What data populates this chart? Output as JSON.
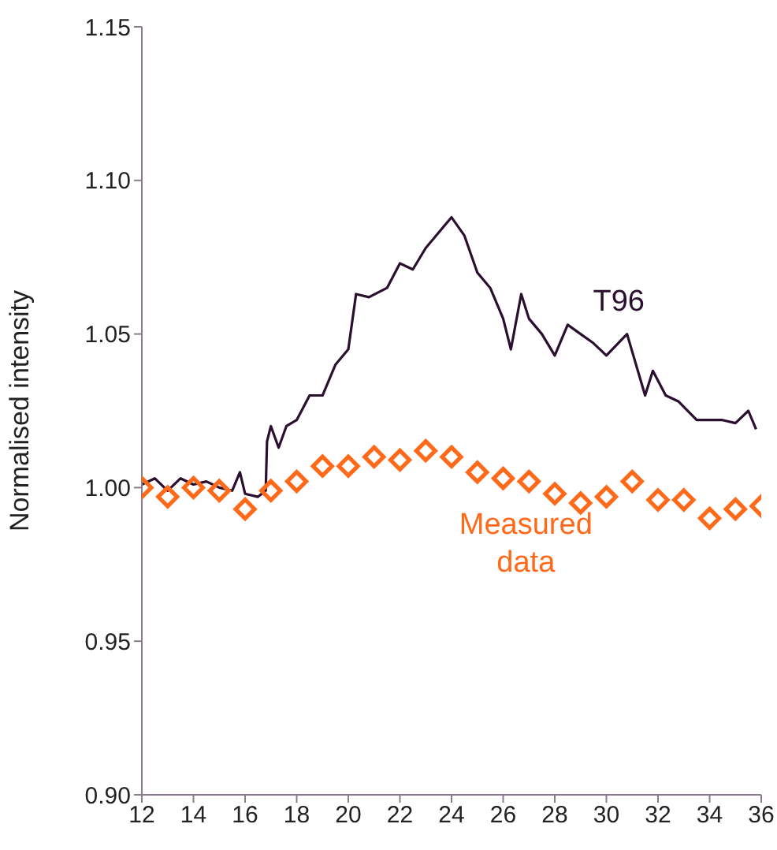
{
  "chart_data": {
    "type": "line",
    "ylabel": "Normalised intensity",
    "xlim": [
      12,
      36
    ],
    "xticks": [
      12,
      14,
      16,
      18,
      20,
      22,
      24,
      26,
      28,
      30,
      32,
      34,
      36
    ],
    "ylim": [
      0.9,
      1.15
    ],
    "yticks": [
      {
        "value": 0.9,
        "label": "0.90"
      },
      0.95,
      {
        "value": 1.0,
        "label": "1.00"
      },
      1.05,
      {
        "value": 1.1,
        "label": "1.10"
      },
      1.15
    ],
    "grid": false,
    "legend": false,
    "series": [
      {
        "name": "T96",
        "type": "line",
        "color": "#2a0f2e",
        "marker": "none",
        "x": [
          12,
          12.5,
          13,
          13.5,
          14,
          14.5,
          15,
          15.5,
          15.8,
          16,
          16.5,
          16.8,
          16.85,
          17,
          17.3,
          17.6,
          18,
          18.5,
          19,
          19.5,
          20,
          20.3,
          20.8,
          21.5,
          22,
          22.5,
          23,
          23.5,
          24,
          24.5,
          25,
          25.5,
          26,
          26.3,
          26.7,
          27,
          27.5,
          28,
          28.5,
          29,
          29.5,
          30,
          30.8,
          31.5,
          31.8,
          32.3,
          32.8,
          33.5,
          34,
          34.5,
          35,
          35.5,
          35.8
        ],
        "values": [
          1.001,
          1.003,
          0.999,
          1.003,
          1.001,
          1.002,
          1.0,
          0.999,
          1.005,
          0.998,
          0.997,
          0.999,
          1.015,
          1.02,
          1.013,
          1.02,
          1.022,
          1.03,
          1.03,
          1.04,
          1.045,
          1.063,
          1.062,
          1.065,
          1.073,
          1.071,
          1.078,
          1.083,
          1.088,
          1.082,
          1.07,
          1.065,
          1.055,
          1.045,
          1.063,
          1.055,
          1.05,
          1.043,
          1.053,
          1.05,
          1.047,
          1.043,
          1.05,
          1.03,
          1.038,
          1.03,
          1.028,
          1.022,
          1.022,
          1.022,
          1.021,
          1.025,
          1.019
        ]
      },
      {
        "name": "Measured data",
        "type": "scatter",
        "color": "#ff6a1a",
        "marker": "diamond",
        "x": [
          12,
          13,
          14,
          15,
          16,
          17,
          18,
          19,
          20,
          21,
          22,
          23,
          24,
          25,
          26,
          27,
          28,
          29,
          30,
          31,
          32,
          33,
          34,
          35,
          36
        ],
        "values": [
          1.0,
          0.997,
          1.0,
          0.999,
          0.993,
          0.999,
          1.002,
          1.007,
          1.007,
          1.01,
          1.009,
          1.012,
          1.01,
          1.005,
          1.003,
          1.002,
          0.998,
          0.995,
          0.997,
          1.002,
          0.996,
          0.996,
          0.99,
          0.993,
          0.994
        ]
      }
    ]
  }
}
